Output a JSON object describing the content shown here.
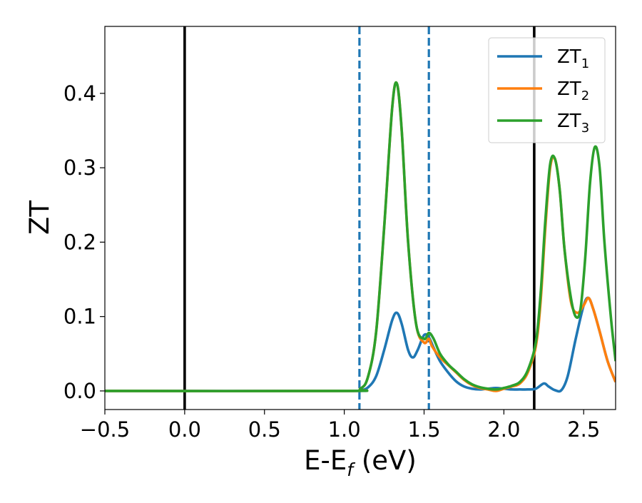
{
  "chart_data": {
    "type": "line",
    "title": "",
    "xlabel": "E-E",
    "xlabel_subscript": "f",
    "xlabel_unit": " (eV)",
    "ylabel": "ZT",
    "xlim": [
      -0.5,
      2.7
    ],
    "ylim": [
      -0.025,
      0.49
    ],
    "x_ticks": [
      -0.5,
      0.0,
      0.5,
      1.0,
      1.5,
      2.0,
      2.5
    ],
    "x_tick_labels": [
      "−0.5",
      "0.0",
      "0.5",
      "1.0",
      "1.5",
      "2.0",
      "2.5"
    ],
    "y_ticks": [
      0.0,
      0.1,
      0.2,
      0.3,
      0.4
    ],
    "y_tick_labels": [
      "0.0",
      "0.1",
      "0.2",
      "0.3",
      "0.4"
    ],
    "grid": false,
    "legend_position": "top-right",
    "vertical_lines": [
      {
        "x": 0.0,
        "style": "solid",
        "color": "#000000"
      },
      {
        "x": 2.19,
        "style": "solid",
        "color": "#000000"
      },
      {
        "x": 1.095,
        "style": "dashed",
        "color": "#1f77b4"
      },
      {
        "x": 1.53,
        "style": "dashed",
        "color": "#1f77b4"
      }
    ],
    "series": [
      {
        "name": "ZT",
        "name_subscript": "1",
        "color": "#1f77b4",
        "x": [
          -0.5,
          1.0,
          1.1,
          1.15,
          1.2,
          1.25,
          1.3,
          1.33,
          1.36,
          1.4,
          1.43,
          1.46,
          1.5,
          1.53,
          1.56,
          1.6,
          1.65,
          1.7,
          1.75,
          1.8,
          1.85,
          1.9,
          1.95,
          2.0,
          2.05,
          2.1,
          2.15,
          2.2,
          2.25,
          2.28,
          2.32,
          2.36,
          2.4,
          2.45,
          2.5,
          2.53,
          2.56,
          2.6,
          2.65,
          2.7
        ],
        "y": [
          0.0,
          0.0,
          0.001,
          0.005,
          0.02,
          0.055,
          0.095,
          0.105,
          0.09,
          0.055,
          0.045,
          0.055,
          0.075,
          0.072,
          0.058,
          0.04,
          0.025,
          0.013,
          0.006,
          0.003,
          0.002,
          0.003,
          0.004,
          0.003,
          0.002,
          0.002,
          0.002,
          0.003,
          0.01,
          0.006,
          0.001,
          0.001,
          0.02,
          0.07,
          0.115,
          0.125,
          0.11,
          0.08,
          0.04,
          0.012
        ]
      },
      {
        "name": "ZT",
        "name_subscript": "2",
        "color": "#ff7f0e",
        "x": [
          -0.5,
          1.0,
          1.1,
          1.15,
          1.2,
          1.25,
          1.3,
          1.33,
          1.36,
          1.4,
          1.45,
          1.5,
          1.53,
          1.55,
          1.6,
          1.65,
          1.7,
          1.75,
          1.8,
          1.85,
          1.9,
          1.95,
          2.0,
          2.05,
          2.1,
          2.15,
          2.2,
          2.23,
          2.26,
          2.29,
          2.32,
          2.35,
          2.38,
          2.42,
          2.46,
          2.5,
          2.53,
          2.56,
          2.6,
          2.65,
          2.7
        ],
        "y": [
          0.0,
          0.0,
          0.003,
          0.02,
          0.08,
          0.22,
          0.38,
          0.413,
          0.35,
          0.2,
          0.09,
          0.065,
          0.07,
          0.06,
          0.045,
          0.035,
          0.025,
          0.015,
          0.008,
          0.004,
          0.002,
          0.0,
          0.003,
          0.006,
          0.01,
          0.025,
          0.06,
          0.12,
          0.22,
          0.3,
          0.312,
          0.27,
          0.19,
          0.12,
          0.105,
          0.115,
          0.125,
          0.11,
          0.08,
          0.04,
          0.012
        ]
      },
      {
        "name": "ZT",
        "name_subscript": "3",
        "color": "#2ca02c",
        "x": [
          -0.5,
          1.0,
          1.1,
          1.15,
          1.2,
          1.25,
          1.3,
          1.33,
          1.36,
          1.4,
          1.45,
          1.5,
          1.53,
          1.56,
          1.6,
          1.65,
          1.7,
          1.75,
          1.8,
          1.85,
          1.9,
          1.95,
          2.0,
          2.05,
          2.1,
          2.15,
          2.2,
          2.23,
          2.26,
          2.29,
          2.32,
          2.35,
          2.38,
          2.42,
          2.45,
          2.48,
          2.51,
          2.54,
          2.57,
          2.6,
          2.63,
          2.67,
          2.7
        ],
        "y": [
          0.0,
          0.0,
          0.003,
          0.02,
          0.08,
          0.22,
          0.38,
          0.413,
          0.35,
          0.2,
          0.09,
          0.07,
          0.078,
          0.07,
          0.05,
          0.036,
          0.026,
          0.016,
          0.009,
          0.005,
          0.003,
          0.002,
          0.004,
          0.007,
          0.012,
          0.028,
          0.065,
          0.13,
          0.23,
          0.305,
          0.312,
          0.27,
          0.19,
          0.125,
          0.1,
          0.11,
          0.18,
          0.28,
          0.328,
          0.3,
          0.2,
          0.1,
          0.04
        ]
      }
    ]
  }
}
